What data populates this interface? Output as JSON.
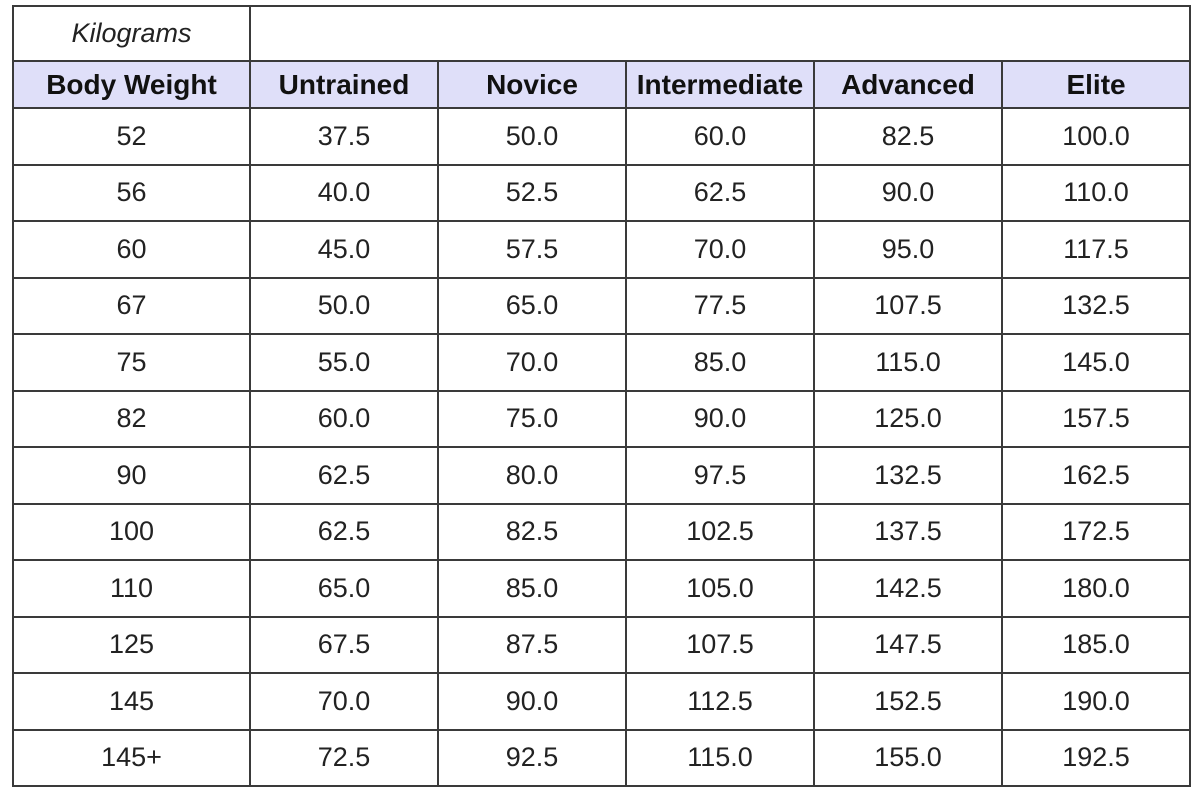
{
  "table": {
    "unit": "Kilograms",
    "header": [
      "Body Weight",
      "Untrained",
      "Novice",
      "Intermediate",
      "Advanced",
      "Elite"
    ],
    "rows": [
      [
        "52",
        "37.5",
        "50.0",
        "60.0",
        "82.5",
        "100.0"
      ],
      [
        "56",
        "40.0",
        "52.5",
        "62.5",
        "90.0",
        "110.0"
      ],
      [
        "60",
        "45.0",
        "57.5",
        "70.0",
        "95.0",
        "117.5"
      ],
      [
        "67",
        "50.0",
        "65.0",
        "77.5",
        "107.5",
        "132.5"
      ],
      [
        "75",
        "55.0",
        "70.0",
        "85.0",
        "115.0",
        "145.0"
      ],
      [
        "82",
        "60.0",
        "75.0",
        "90.0",
        "125.0",
        "157.5"
      ],
      [
        "90",
        "62.5",
        "80.0",
        "97.5",
        "132.5",
        "162.5"
      ],
      [
        "100",
        "62.5",
        "82.5",
        "102.5",
        "137.5",
        "172.5"
      ],
      [
        "110",
        "65.0",
        "85.0",
        "105.0",
        "142.5",
        "180.0"
      ],
      [
        "125",
        "67.5",
        "87.5",
        "107.5",
        "147.5",
        "185.0"
      ],
      [
        "145",
        "70.0",
        "90.0",
        "112.5",
        "152.5",
        "190.0"
      ],
      [
        "145+",
        "72.5",
        "92.5",
        "115.0",
        "155.0",
        "192.5"
      ]
    ]
  }
}
